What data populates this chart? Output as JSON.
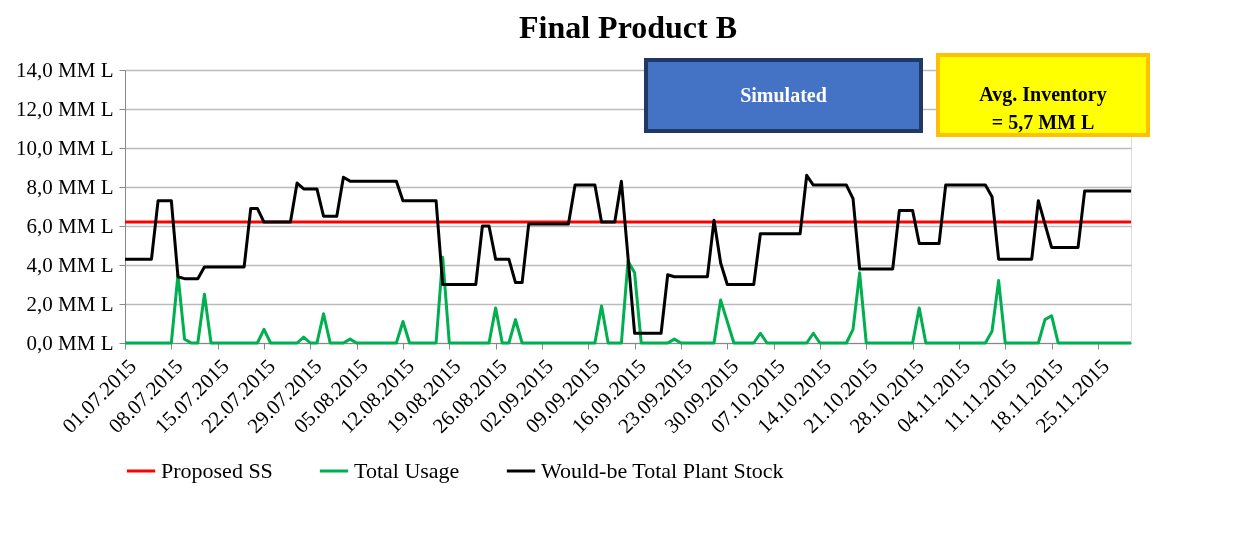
{
  "chart_data": {
    "type": "line",
    "title": "Final Product B",
    "annotations": [
      "Simulated",
      "Avg. Inventory\n= 5,7 MM L"
    ],
    "series": [
      {
        "name": "Proposed SS",
        "color": "#ff0000",
        "x": [
          "2015-07-01",
          "2015-11-30"
        ],
        "values": [
          6.2,
          6.2
        ]
      },
      {
        "name": "Total Usage",
        "color": "#00b050",
        "x": [
          "2015-07-01",
          "2015-07-08",
          "2015-07-09",
          "2015-07-10",
          "2015-07-11",
          "2015-07-12",
          "2015-07-13",
          "2015-07-14",
          "2015-07-21",
          "2015-07-22",
          "2015-07-23",
          "2015-07-27",
          "2015-07-28",
          "2015-07-29",
          "2015-07-30",
          "2015-07-31",
          "2015-08-01",
          "2015-08-03",
          "2015-08-04",
          "2015-08-05",
          "2015-08-11",
          "2015-08-12",
          "2015-08-13",
          "2015-08-17",
          "2015-08-18",
          "2015-08-19",
          "2015-08-25",
          "2015-08-26",
          "2015-08-27",
          "2015-08-28",
          "2015-08-29",
          "2015-08-30",
          "2015-09-10",
          "2015-09-11",
          "2015-09-12",
          "2015-09-14",
          "2015-09-15",
          "2015-09-16",
          "2015-09-17",
          "2015-09-21",
          "2015-09-22",
          "2015-09-23",
          "2015-09-28",
          "2015-09-29",
          "2015-10-01",
          "2015-10-04",
          "2015-10-05",
          "2015-10-06",
          "2015-10-12",
          "2015-10-13",
          "2015-10-14",
          "2015-10-18",
          "2015-10-19",
          "2015-10-20",
          "2015-10-21",
          "2015-10-28",
          "2015-10-29",
          "2015-10-30",
          "2015-11-08",
          "2015-11-09",
          "2015-11-10",
          "2015-11-11",
          "2015-11-16",
          "2015-11-17",
          "2015-11-18",
          "2015-11-19",
          "2015-11-30"
        ],
        "values": [
          0,
          0,
          3.5,
          0.2,
          0,
          0,
          2.5,
          0,
          0,
          0.7,
          0,
          0,
          0.3,
          0,
          0,
          1.5,
          0,
          0,
          0.2,
          0,
          0,
          1.1,
          0,
          0,
          4.4,
          0,
          0,
          1.8,
          0,
          0,
          1.2,
          0,
          0,
          1.9,
          0,
          0,
          4.2,
          3.6,
          0,
          0,
          0.2,
          0,
          0,
          2.2,
          0,
          0,
          0.5,
          0,
          0,
          0.5,
          0,
          0,
          0.7,
          3.6,
          0,
          0,
          1.8,
          0,
          0,
          0.6,
          3.2,
          0,
          0,
          1.2,
          1.4,
          0,
          0
        ]
      },
      {
        "name": "Would-be Total Plant Stock",
        "color": "#000000",
        "x": [
          "2015-07-01",
          "2015-07-05",
          "2015-07-06",
          "2015-07-08",
          "2015-07-09",
          "2015-07-10",
          "2015-07-12",
          "2015-07-13",
          "2015-07-19",
          "2015-07-20",
          "2015-07-21",
          "2015-07-22",
          "2015-07-26",
          "2015-07-27",
          "2015-07-28",
          "2015-07-30",
          "2015-07-31",
          "2015-08-02",
          "2015-08-03",
          "2015-08-04",
          "2015-08-11",
          "2015-08-12",
          "2015-08-17",
          "2015-08-18",
          "2015-08-23",
          "2015-08-24",
          "2015-08-25",
          "2015-08-26",
          "2015-08-28",
          "2015-08-29",
          "2015-08-30",
          "2015-08-31",
          "2015-09-06",
          "2015-09-07",
          "2015-09-10",
          "2015-09-11",
          "2015-09-13",
          "2015-09-14",
          "2015-09-16",
          "2015-09-20",
          "2015-09-21",
          "2015-09-22",
          "2015-09-27",
          "2015-09-28",
          "2015-09-29",
          "2015-09-30",
          "2015-10-04",
          "2015-10-05",
          "2015-10-11",
          "2015-10-12",
          "2015-10-13",
          "2015-10-18",
          "2015-10-19",
          "2015-10-20",
          "2015-10-25",
          "2015-10-26",
          "2015-10-28",
          "2015-10-29",
          "2015-11-01",
          "2015-11-02",
          "2015-11-08",
          "2015-11-09",
          "2015-11-10",
          "2015-11-15",
          "2015-11-16",
          "2015-11-18",
          "2015-11-22",
          "2015-11-23",
          "2015-11-30"
        ],
        "values": [
          4.3,
          4.3,
          7.3,
          7.3,
          3.4,
          3.3,
          3.3,
          3.9,
          3.9,
          6.9,
          6.9,
          6.2,
          6.2,
          8.2,
          7.9,
          7.9,
          6.5,
          6.5,
          8.5,
          8.3,
          8.3,
          7.3,
          7.3,
          3.0,
          3.0,
          6.0,
          6.0,
          4.3,
          4.3,
          3.1,
          3.1,
          6.1,
          6.1,
          8.1,
          8.1,
          6.2,
          6.2,
          8.3,
          0.5,
          0.5,
          3.5,
          3.4,
          3.4,
          6.3,
          4.1,
          3.0,
          3.0,
          5.6,
          5.6,
          8.6,
          8.1,
          8.1,
          7.4,
          3.8,
          3.8,
          6.8,
          6.8,
          5.1,
          5.1,
          8.1,
          8.1,
          7.5,
          4.3,
          4.3,
          7.3,
          4.9,
          4.9,
          7.8,
          7.8
        ]
      }
    ],
    "xlim": [
      "2015-07-01",
      "2015-11-30"
    ],
    "xticks": [
      {
        "value": "2015-07-01",
        "label": "01.07.2015"
      },
      {
        "value": "2015-07-08",
        "label": "08.07.2015"
      },
      {
        "value": "2015-07-15",
        "label": "15.07.2015"
      },
      {
        "value": "2015-07-22",
        "label": "22.07.2015"
      },
      {
        "value": "2015-07-29",
        "label": "29.07.2015"
      },
      {
        "value": "2015-08-05",
        "label": "05.08.2015"
      },
      {
        "value": "2015-08-12",
        "label": "12.08.2015"
      },
      {
        "value": "2015-08-19",
        "label": "19.08.2015"
      },
      {
        "value": "2015-08-26",
        "label": "26.08.2015"
      },
      {
        "value": "2015-09-02",
        "label": "02.09.2015"
      },
      {
        "value": "2015-09-09",
        "label": "09.09.2015"
      },
      {
        "value": "2015-09-16",
        "label": "16.09.2015"
      },
      {
        "value": "2015-09-23",
        "label": "23.09.2015"
      },
      {
        "value": "2015-09-30",
        "label": "30.09.2015"
      },
      {
        "value": "2015-10-07",
        "label": "07.10.2015"
      },
      {
        "value": "2015-10-14",
        "label": "14.10.2015"
      },
      {
        "value": "2015-10-21",
        "label": "21.10.2015"
      },
      {
        "value": "2015-10-28",
        "label": "28.10.2015"
      },
      {
        "value": "2015-11-04",
        "label": "04.11.2015"
      },
      {
        "value": "2015-11-11",
        "label": "11.11.2015"
      },
      {
        "value": "2015-11-18",
        "label": "18.11.2015"
      },
      {
        "value": "2015-11-25",
        "label": "25.11.2015"
      }
    ],
    "ylim": [
      0,
      14
    ],
    "yticks": [
      {
        "value": 0,
        "label": "0,0 MM L"
      },
      {
        "value": 2,
        "label": "2,0 MM L"
      },
      {
        "value": 4,
        "label": "4,0 MM L"
      },
      {
        "value": 6,
        "label": "6,0 MM L"
      },
      {
        "value": 8,
        "label": "8,0 MM L"
      },
      {
        "value": 10,
        "label": "10,0 MM L"
      },
      {
        "value": 12,
        "label": "12,0 MM L"
      },
      {
        "value": 14,
        "label": "14,0 MM L"
      }
    ],
    "grid": "y",
    "legend": "bottom",
    "marker": "none",
    "line_style": "solid"
  }
}
